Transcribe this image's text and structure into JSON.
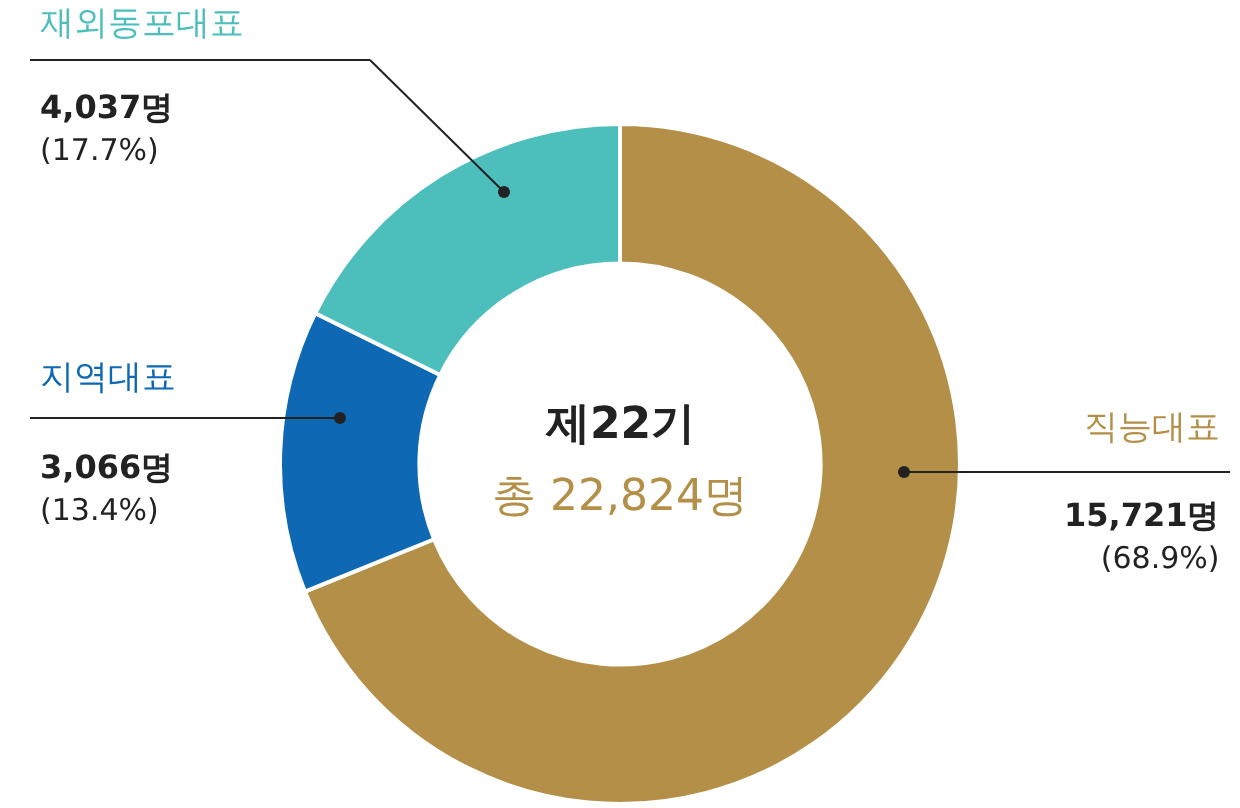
{
  "chart_data": {
    "type": "donut",
    "categories": [
      "직능대표",
      "지역대표",
      "재외동포대표"
    ],
    "values": [
      15721,
      3066,
      4037
    ],
    "colors": [
      "#b38f48",
      "#0e68b3",
      "#4cbfbc"
    ],
    "value_labels": [
      "15,721명\n(68.9%)",
      "3,066명\n(13.4%)",
      "4,037명\n(17.7%)"
    ],
    "annotations": [
      "제22기",
      "총 22,824명"
    ],
    "legend": false
  }
}
